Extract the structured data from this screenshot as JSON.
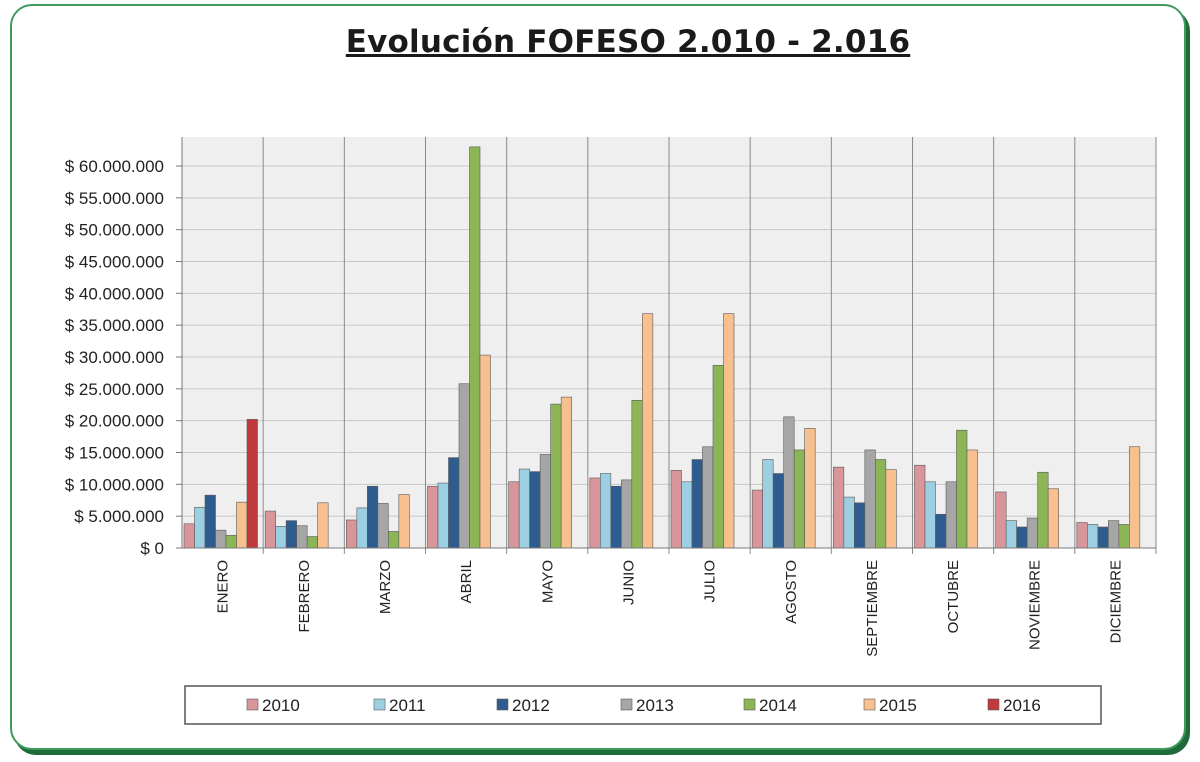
{
  "chart_data": {
    "type": "bar",
    "title": "Evolución FOFESO 2.010 - 2.016",
    "xlabel": "",
    "ylabel": "",
    "ylim": [
      0,
      60000000
    ],
    "y_ticks": [
      "$ 0",
      "$ 5.000.000",
      "$ 10.000.000",
      "$ 15.000.000",
      "$ 20.000.000",
      "$ 25.000.000",
      "$ 30.000.000",
      "$ 35.000.000",
      "$ 40.000.000",
      "$ 45.000.000",
      "$ 50.000.000",
      "$ 55.000.000",
      "$ 60.000.000"
    ],
    "categories": [
      "ENERO",
      "FEBRERO",
      "MARZO",
      "ABRIL",
      "MAYO",
      "JUNIO",
      "JULIO",
      "AGOSTO",
      "SEPTIEMBRE",
      "OCTUBRE",
      "NOVIEMBRE",
      "DICIEMBRE"
    ],
    "grid": true,
    "legend_position": "bottom",
    "series": [
      {
        "name": "2010",
        "color": "#d9969a",
        "values": [
          3800000,
          5800000,
          4400000,
          9700000,
          10400000,
          11000000,
          12200000,
          9100000,
          12700000,
          13000000,
          8800000,
          4000000
        ]
      },
      {
        "name": "2011",
        "color": "#9dcfe3",
        "values": [
          6400000,
          3400000,
          6300000,
          10200000,
          12400000,
          11700000,
          10400000,
          13900000,
          8000000,
          10400000,
          4300000,
          3700000
        ]
      },
      {
        "name": "2012",
        "color": "#2f5c8f",
        "values": [
          8300000,
          4300000,
          9700000,
          14200000,
          12000000,
          9700000,
          13900000,
          11700000,
          7100000,
          5300000,
          3300000,
          3300000
        ]
      },
      {
        "name": "2013",
        "color": "#a6a6a6",
        "values": [
          2800000,
          3500000,
          7000000,
          25800000,
          14700000,
          10700000,
          15900000,
          20600000,
          15400000,
          10400000,
          4700000,
          4300000
        ]
      },
      {
        "name": "2014",
        "color": "#8cb655",
        "values": [
          2000000,
          1800000,
          2600000,
          63000000,
          22600000,
          23200000,
          28700000,
          15400000,
          13900000,
          18500000,
          11900000,
          3700000
        ]
      },
      {
        "name": "2015",
        "color": "#f8c08e",
        "values": [
          7200000,
          7100000,
          8400000,
          30300000,
          23700000,
          36800000,
          36800000,
          18800000,
          12300000,
          15400000,
          9300000,
          15900000
        ]
      },
      {
        "name": "2016",
        "color": "#c0393c",
        "values": [
          20200000,
          null,
          null,
          null,
          null,
          null,
          null,
          null,
          null,
          null,
          null,
          null
        ]
      }
    ]
  }
}
